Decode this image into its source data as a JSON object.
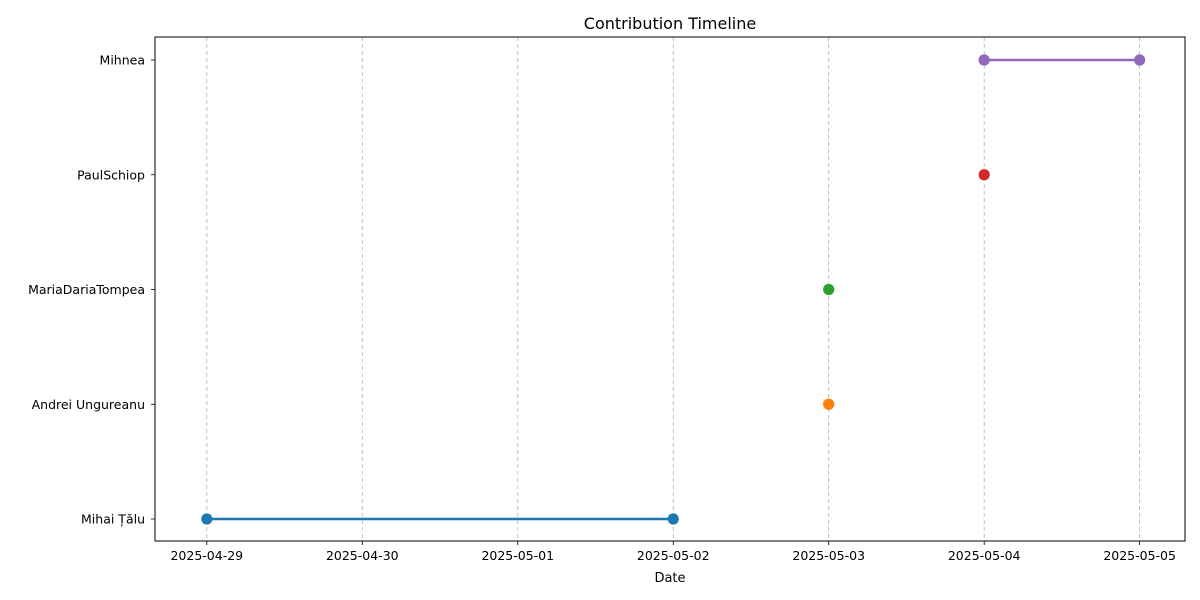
{
  "chart_data": {
    "type": "timeline",
    "title": "Contribution Timeline",
    "xlabel": "Date",
    "ylabel": "",
    "x_ticks": [
      "2025-04-29",
      "2025-04-30",
      "2025-05-01",
      "2025-05-02",
      "2025-05-03",
      "2025-05-04",
      "2025-05-05"
    ],
    "xlim": [
      "2025-04-28T16:00",
      "2025-05-05T07:00"
    ],
    "grid": "x-dashed",
    "categories": [
      "Mihai Țălu",
      "Andrei Ungureanu",
      "MariaDariaTompea",
      "PaulSchiop",
      "Mihnea"
    ],
    "series": [
      {
        "category": "Mihai Țălu",
        "start": "2025-04-29",
        "end": "2025-05-02",
        "color": "#1f77b4"
      },
      {
        "category": "Andrei Ungureanu",
        "start": "2025-05-03",
        "end": "2025-05-03",
        "color": "#ff7f0e"
      },
      {
        "category": "MariaDariaTompea",
        "start": "2025-05-03",
        "end": "2025-05-03",
        "color": "#2ca02c"
      },
      {
        "category": "PaulSchiop",
        "start": "2025-05-04",
        "end": "2025-05-04",
        "color": "#d62728"
      },
      {
        "category": "Mihnea",
        "start": "2025-05-04",
        "end": "2025-05-05",
        "color": "#9467bd"
      }
    ]
  }
}
